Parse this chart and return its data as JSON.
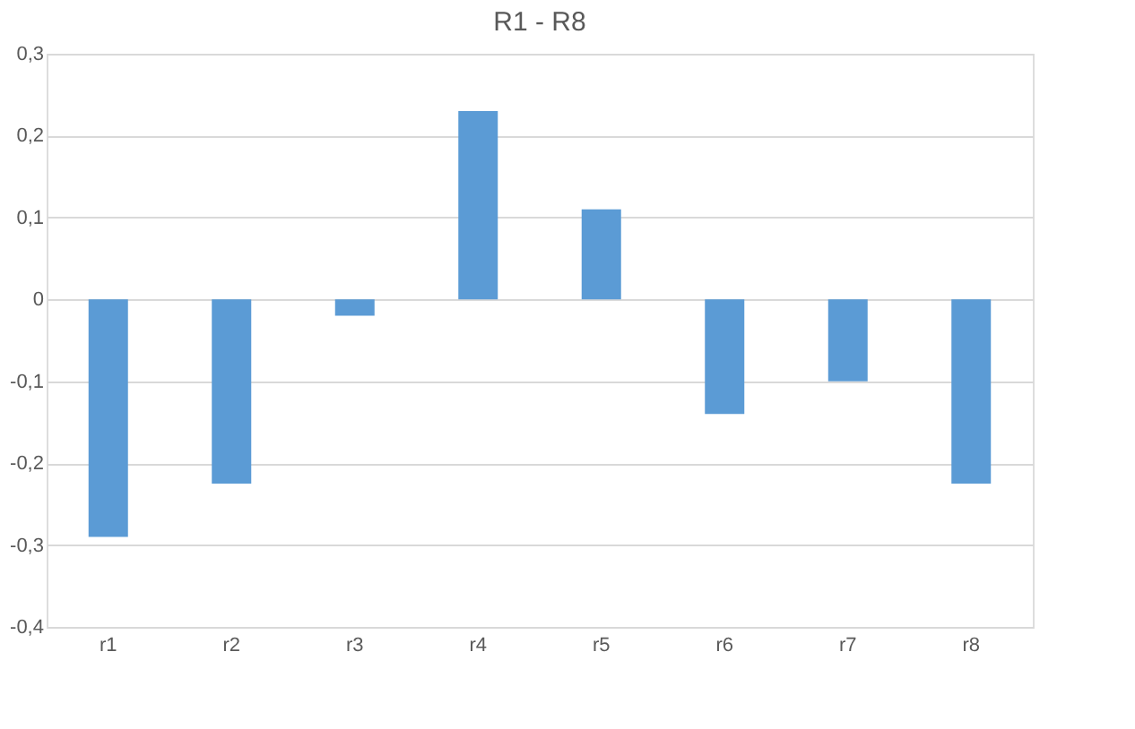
{
  "chart_data": {
    "type": "bar",
    "title": "R1 - R8",
    "categories": [
      "r1",
      "r2",
      "r3",
      "r4",
      "r5",
      "r6",
      "r7",
      "r8"
    ],
    "values": [
      -0.29,
      -0.225,
      -0.02,
      0.23,
      0.11,
      -0.14,
      -0.1,
      -0.225
    ],
    "color": "#5b9bd5",
    "ylim": [
      -0.4,
      0.3
    ],
    "yticks": [
      {
        "value": -0.4,
        "label": "-0,4"
      },
      {
        "value": -0.3,
        "label": "-0,3"
      },
      {
        "value": -0.2,
        "label": "-0,2"
      },
      {
        "value": -0.1,
        "label": "-0,1"
      },
      {
        "value": 0,
        "label": "0"
      },
      {
        "value": 0.1,
        "label": "0,1"
      },
      {
        "value": 0.2,
        "label": "0,2"
      },
      {
        "value": 0.3,
        "label": "0,3"
      }
    ],
    "grid": "y",
    "legend": false
  }
}
